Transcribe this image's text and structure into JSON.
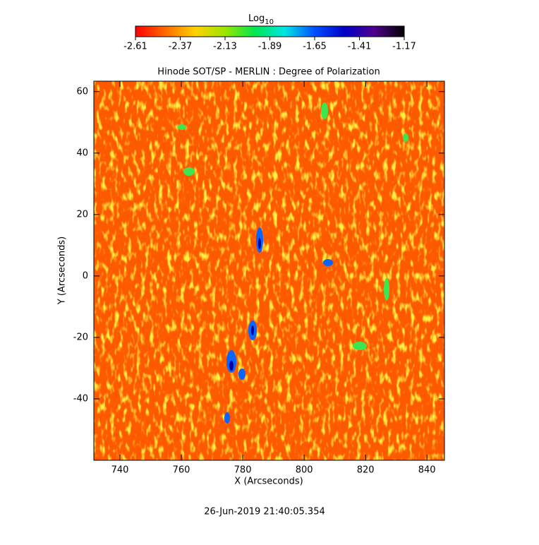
{
  "chart_data": {
    "type": "heatmap",
    "title": "Hinode SOT/SP - MERLIN : Degree of Polarization",
    "x_label": "X (Arcseconds)",
    "y_label": "Y (Arcseconds)",
    "xlim": [
      731.5,
      845.7
    ],
    "ylim": [
      -60,
      63.4
    ],
    "xticks": [
      740,
      760,
      780,
      800,
      820,
      840
    ],
    "yticks": [
      -40,
      -20,
      0,
      20,
      40,
      60
    ],
    "colorbar": {
      "label": "Log",
      "label_subscript": "10",
      "lim": [
        -2.61,
        -1.17
      ],
      "ticks": [
        -2.61,
        -2.37,
        -2.13,
        -1.89,
        -1.65,
        -1.41,
        -1.17
      ],
      "colormap": [
        "#ff0000",
        "#ff6a00",
        "#ffd200",
        "#9be600",
        "#00e650",
        "#00e6e6",
        "#0050ff",
        "#0000c8",
        "#50008c",
        "#000000"
      ]
    },
    "date": "26-Jun-2019 21:40:05.354"
  }
}
